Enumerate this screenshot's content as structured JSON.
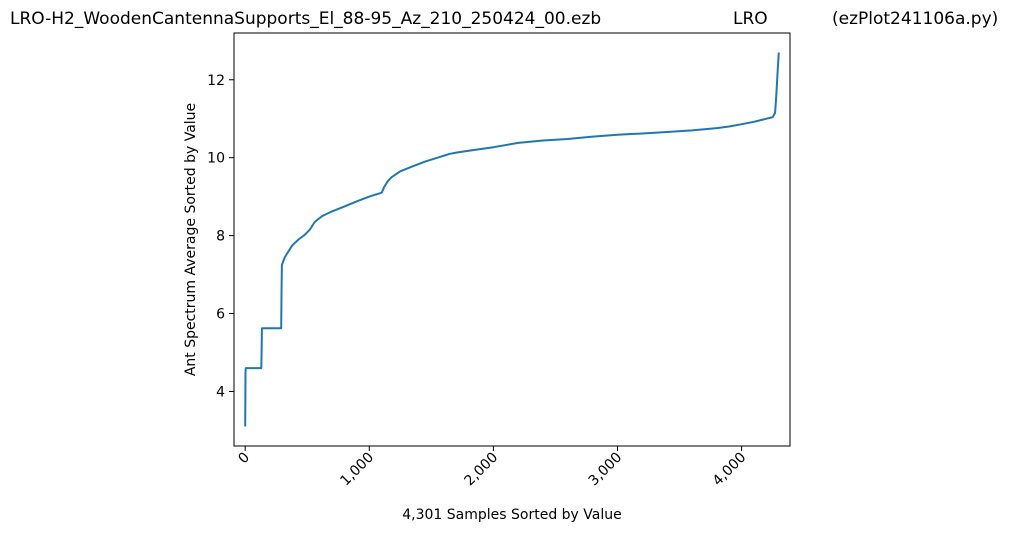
{
  "header": {
    "file_title": "LRO-H2_WoodenCantennaSupports_El_88-95_Az_210_250424_00.ezb",
    "site": "LRO",
    "program": "(ezPlot241106a.py)"
  },
  "chart_data": {
    "type": "line",
    "xlabel": "4,301 Samples Sorted by Value",
    "ylabel": "Ant Spectrum Average Sorted by Value",
    "xlim": [
      -90,
      4390
    ],
    "ylim": [
      2.6,
      13.2
    ],
    "x_ticks": [
      0,
      1000,
      2000,
      3000,
      4000
    ],
    "x_tick_labels": [
      "0",
      "1,000",
      "2,000",
      "3,000",
      "4,000"
    ],
    "y_ticks": [
      4,
      6,
      8,
      10,
      12
    ],
    "y_tick_labels": [
      "4",
      "6",
      "8",
      "10",
      "12"
    ],
    "grid": false,
    "line_color": "#1f77b4",
    "series": [
      {
        "x": [
          0,
          3,
          5,
          7,
          130,
          132,
          135,
          290,
          293,
          296,
          320,
          350,
          380,
          430,
          480,
          520,
          560,
          580,
          620,
          700,
          800,
          900,
          1000,
          1100,
          1120,
          1150,
          1180,
          1250,
          1350,
          1450,
          1550,
          1650,
          1700,
          1800,
          2000,
          2200,
          2400,
          2600,
          2800,
          3000,
          3200,
          3400,
          3600,
          3800,
          3900,
          4000,
          4100,
          4200,
          4250,
          4270,
          4280,
          4290,
          4296,
          4300
        ],
        "y": [
          3.1,
          4.5,
          4.6,
          4.6,
          4.6,
          5.0,
          5.62,
          5.62,
          6.5,
          7.25,
          7.45,
          7.6,
          7.75,
          7.9,
          8.02,
          8.15,
          8.35,
          8.4,
          8.5,
          8.62,
          8.75,
          8.88,
          9.0,
          9.1,
          9.25,
          9.4,
          9.5,
          9.65,
          9.78,
          9.9,
          10.0,
          10.1,
          10.13,
          10.18,
          10.27,
          10.38,
          10.44,
          10.48,
          10.54,
          10.59,
          10.62,
          10.66,
          10.7,
          10.76,
          10.8,
          10.86,
          10.92,
          11.0,
          11.04,
          11.15,
          11.6,
          12.2,
          12.5,
          12.7
        ]
      }
    ]
  }
}
